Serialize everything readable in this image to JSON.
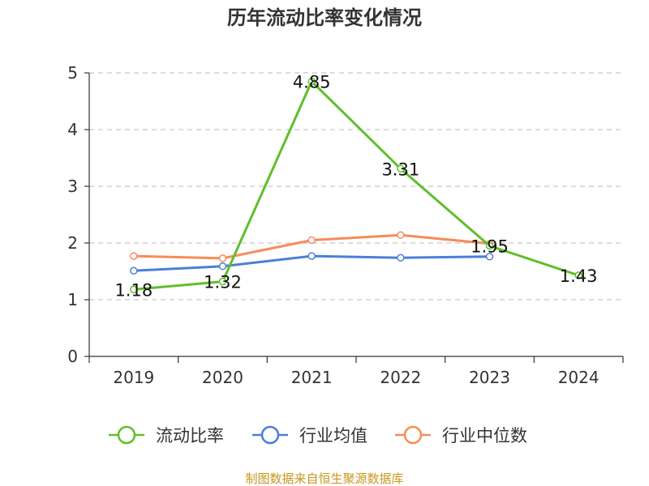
{
  "chart_data": {
    "type": "line",
    "title": "历年流动比率变化情况",
    "categories": [
      "2019",
      "2020",
      "2021",
      "2022",
      "2023",
      "2024"
    ],
    "ylim": [
      0,
      5
    ],
    "yticks": [
      0,
      1,
      2,
      3,
      4,
      5
    ],
    "grid": true,
    "legend_position": "bottom",
    "series": [
      {
        "name": "流动比率",
        "color": "#5fbf2a",
        "values": [
          1.18,
          1.32,
          4.85,
          3.31,
          1.95,
          1.43
        ],
        "labels": [
          "1.18",
          "1.32",
          "4.85",
          "3.31",
          "1.95",
          "1.43"
        ]
      },
      {
        "name": "行业均值",
        "color": "#4a7fd8",
        "values": [
          1.51,
          1.59,
          1.77,
          1.74,
          1.76,
          null
        ]
      },
      {
        "name": "行业中位数",
        "color": "#f58d5a",
        "values": [
          1.77,
          1.73,
          2.05,
          2.14,
          1.99,
          null
        ]
      }
    ]
  },
  "source_text": "制图数据来自恒生聚源数据库"
}
